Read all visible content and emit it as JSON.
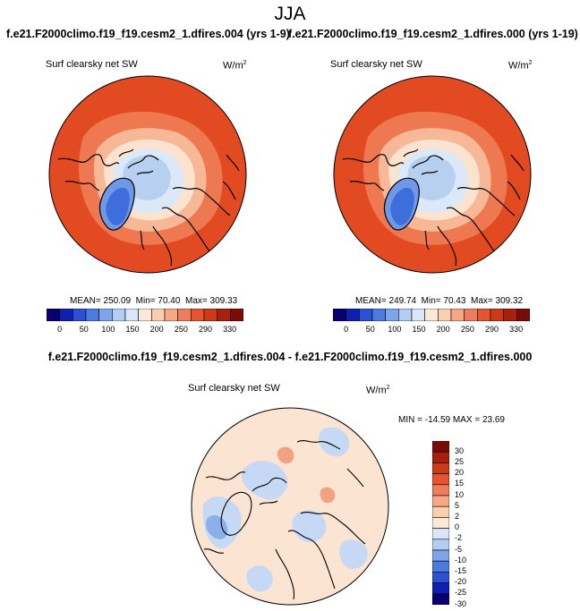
{
  "title": "JJA",
  "panel_titles": {
    "left": "f.e21.F2000climo.f19_f19.cesm2_1.dfires.004 (yrs 1-9)",
    "right": "f.e21.F2000climo.f19_f19.cesm2_1.dfires.000 (yrs 1-19)"
  },
  "diff_title": "f.e21.F2000climo.f19_f19.cesm2_1.dfires.004 - f.e21.F2000climo.f19_f19.cesm2_1.dfires.000",
  "variable": "Surf clearsky net SW",
  "units": "W/m",
  "units_exp": "2",
  "panels": [
    {
      "mean_label": "MEAN=",
      "mean": "250.09",
      "min_label": "Min=",
      "min": "70.40",
      "max_label": "Max=",
      "max": "309.33"
    },
    {
      "mean_label": "MEAN=",
      "mean": "249.74",
      "min_label": "Min=",
      "min": "70.43",
      "max_label": "Max=",
      "max": "309.32"
    }
  ],
  "diff_stats": {
    "min_label": "MIN =",
    "min": "-14.59",
    "max_label": "MAX =",
    "max": "23.69"
  },
  "colorbar": {
    "colors": [
      "#08006e",
      "#0c20b4",
      "#2a50d4",
      "#4a7be0",
      "#7ea4ea",
      "#b3cdf2",
      "#d9e6f7",
      "#fbe9d8",
      "#fbcfae",
      "#f6a884",
      "#ef7c5a",
      "#e5542f",
      "#cd3a1a",
      "#a8200c",
      "#7a0b05"
    ],
    "ticks": [
      "0",
      "50",
      "100",
      "150",
      "200",
      "250",
      "290",
      "330"
    ]
  },
  "diff_colorbar": {
    "colors": [
      "#7a0b05",
      "#a8200c",
      "#cd3a1a",
      "#e5542f",
      "#ef7c5a",
      "#f6a884",
      "#fbcfae",
      "#fbe9d8",
      "#d9e6f7",
      "#b3cdf2",
      "#7ea4ea",
      "#4a7be0",
      "#2a50d4",
      "#0c20b4",
      "#08006e"
    ],
    "ticks": [
      "30",
      "25",
      "20",
      "15",
      "10",
      "5",
      "2",
      "0",
      "-2",
      "-5",
      "-10",
      "-15",
      "-20",
      "-25",
      "-30"
    ]
  },
  "map_colors": {
    "ring_outer": "#e24a22",
    "ring_mid": "#ee7850",
    "ring_inner": "#f7b898",
    "ring_pale": "#fbe3d0",
    "arctic_pale": "#dbe8f8",
    "arctic_light": "#b8d0f0",
    "greenland_mid": "#6f99e6",
    "greenland_dark": "#3d6fdc",
    "diff_bg": "#fbe4d2",
    "diff_blue": "#c6d9f4",
    "diff_blue_dark": "#8ab0ea",
    "diff_red": "#f2a283",
    "coast": "#000000"
  }
}
